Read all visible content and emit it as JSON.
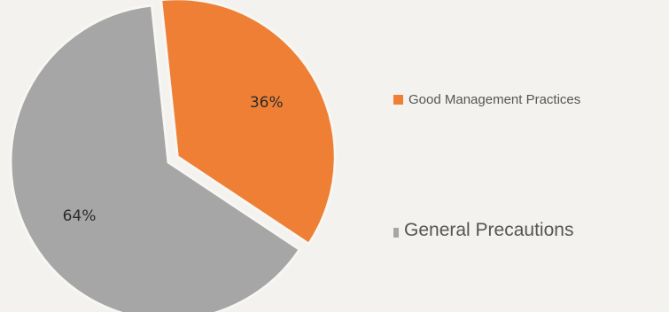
{
  "chart_data": {
    "type": "pie",
    "categories": [
      "Good Management Practices",
      "General Precautions"
    ],
    "values": [
      36,
      64
    ],
    "labels": [
      "36%",
      "64%"
    ],
    "colors": [
      "#ef7f34",
      "#a6a6a6"
    ],
    "exploded": [
      true,
      false
    ],
    "title": "",
    "legend_position": "right"
  }
}
